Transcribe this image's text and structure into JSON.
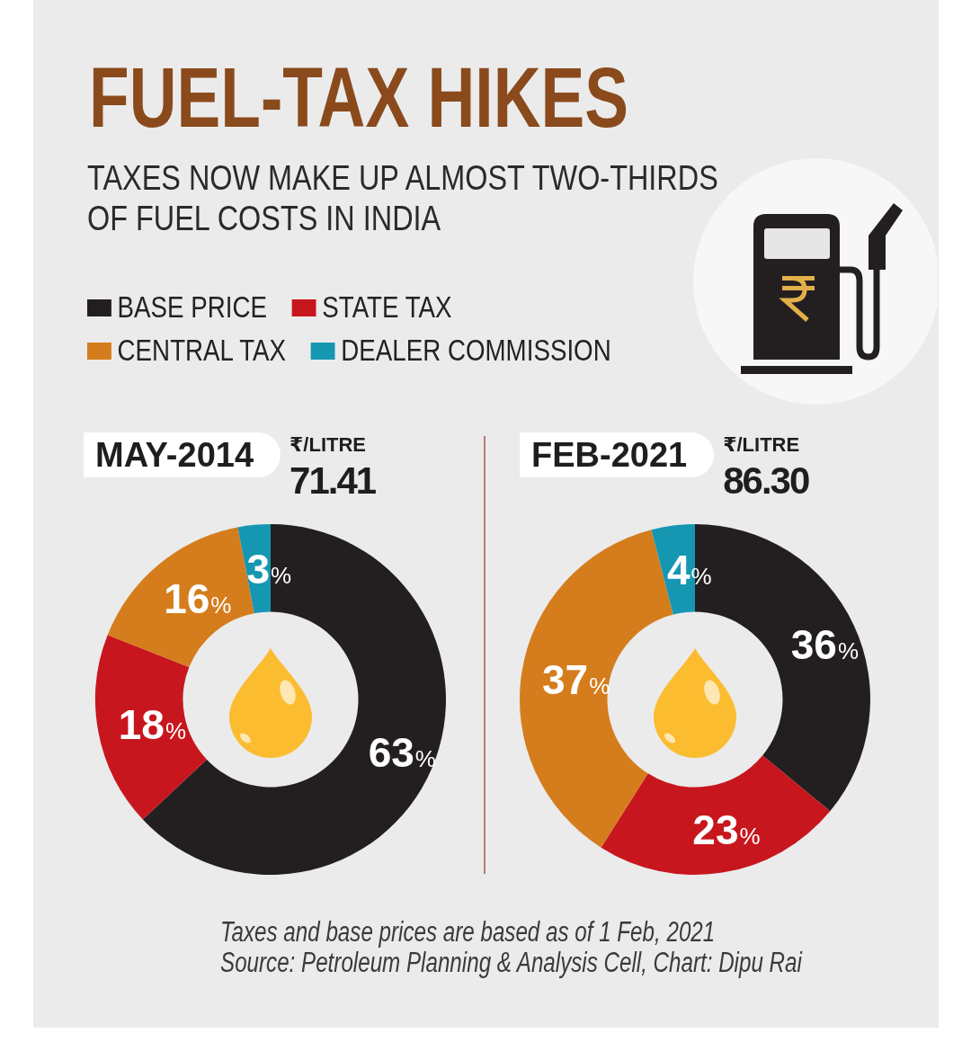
{
  "chart_data": [
    {
      "type": "other",
      "title": "FUEL-TAX HIKES",
      "subtitle": "TAXES NOW MAKE UP ALMOST TWO-THIRDS OF FUEL COSTS IN INDIA",
      "annotations": [
        "Taxes and base prices are based as of 1 Feb, 2021",
        "Source: Petroleum Planning & Analysis Cell, Chart: Dipu Rai"
      ]
    },
    {
      "type": "donut",
      "title": "MAY-2014",
      "annotations": [
        "₹/LITRE",
        "71.41"
      ],
      "categories": [
        "BASE PRICE",
        "STATE TAX",
        "CENTRAL TAX",
        "DEALER COMMISSION"
      ],
      "values": [
        63,
        18,
        16,
        3
      ],
      "colors": [
        "#231f20",
        "#c8161e",
        "#d57d1c",
        "#1597b2"
      ],
      "value_labels": [
        "63%",
        "18%",
        "16%",
        "3%"
      ],
      "legend": "top right"
    },
    {
      "type": "donut",
      "title": "FEB-2021",
      "annotations": [
        "₹/LITRE",
        "86.30"
      ],
      "categories": [
        null,
        null,
        null,
        null
      ],
      "values": [
        36,
        23,
        37,
        4
      ],
      "colors": [
        "#231f20",
        "#c8161e",
        "#d57d1c",
        "#1597b2"
      ],
      "value_labels": [
        "36%",
        "23%",
        "37%",
        "4%"
      ]
    }
  ]
}
